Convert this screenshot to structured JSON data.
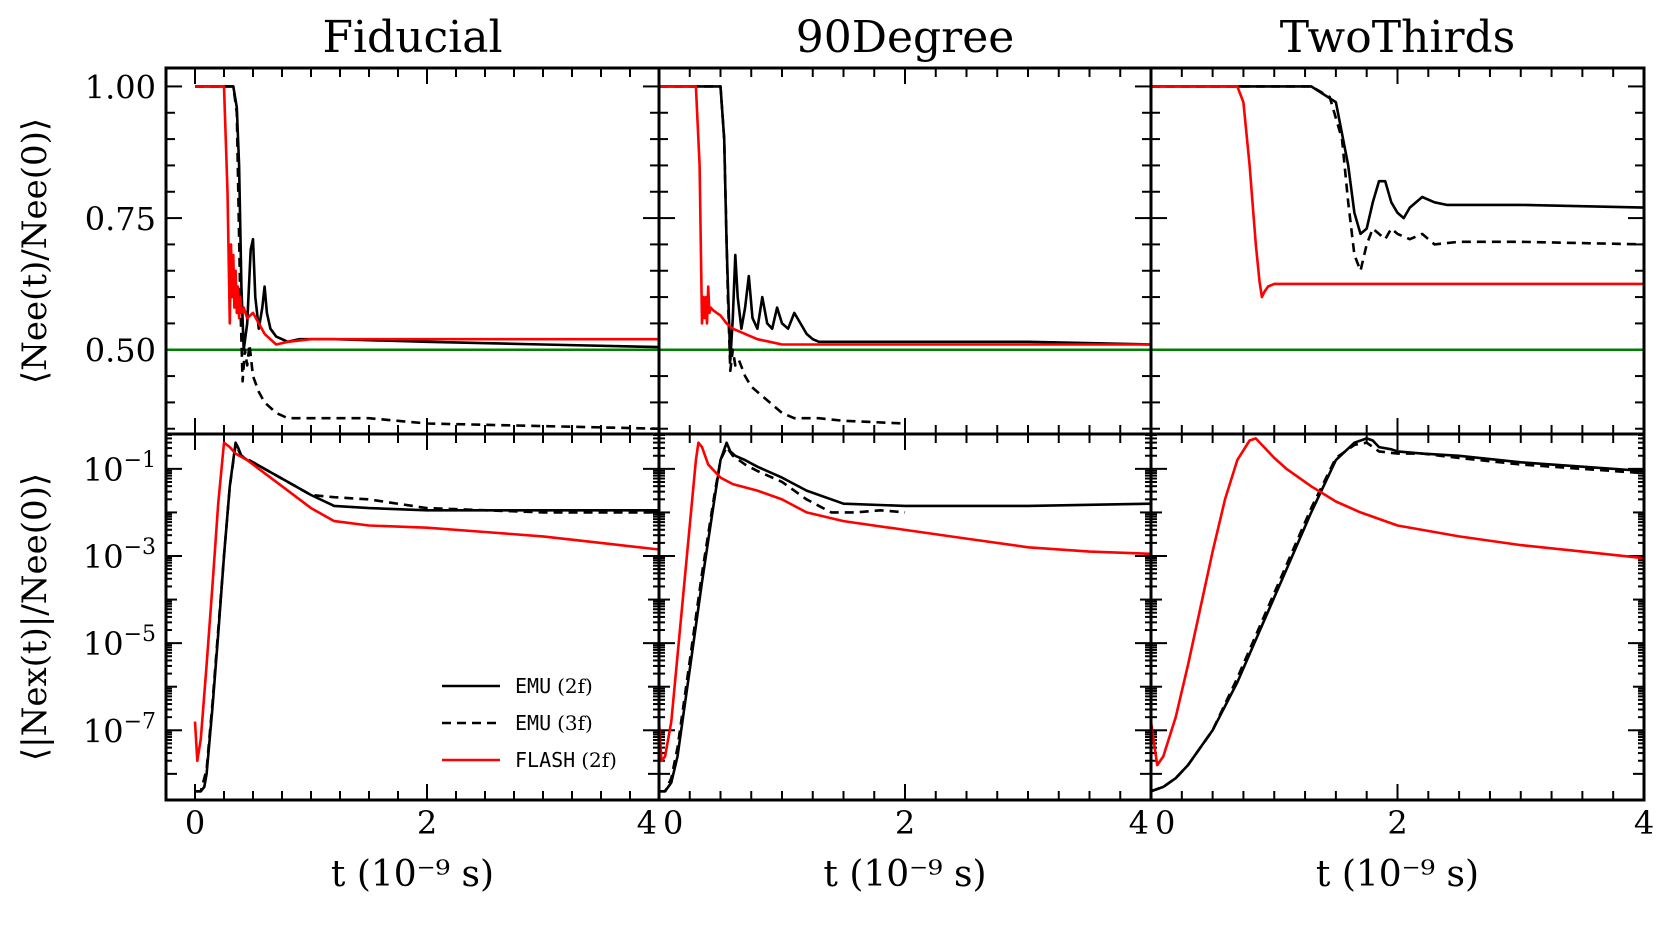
{
  "figure": {
    "legend": {
      "placement": "lower-right of bottom-left panel",
      "entries": [
        {
          "code": "EMU",
          "tag": "(2f)",
          "style": "solid",
          "color": "#000000"
        },
        {
          "code": "EMU",
          "tag": "(3f)",
          "style": "dashed",
          "color": "#000000"
        },
        {
          "code": "FLASH",
          "tag": "(2f)",
          "style": "solid",
          "color": "#ff0000"
        }
      ]
    }
  },
  "chart_data": [
    {
      "type": "line",
      "panel": "top-left",
      "title": "Fiducial",
      "ylabel": "⟨Nee(t)/Nee(0)⟩",
      "xlim": [
        -0.25,
        4.0
      ],
      "ylim": [
        0.34,
        1.035
      ],
      "yticks": [
        {
          "v": 0.5,
          "label": "0.50"
        },
        {
          "v": 0.75,
          "label": "0.75"
        },
        {
          "v": 1.0,
          "label": "1.00"
        }
      ],
      "hline": {
        "y": 0.5,
        "color": "#008000"
      },
      "series": [
        {
          "name": "EMU (2f)",
          "color": "#000000",
          "style": "solid",
          "x": [
            0,
            0.33,
            0.36,
            0.38,
            0.4,
            0.42,
            0.45,
            0.48,
            0.5,
            0.52,
            0.55,
            0.58,
            0.6,
            0.62,
            0.65,
            0.7,
            0.75,
            0.8,
            0.9,
            1.0,
            1.2,
            2.0,
            3.0,
            4.0
          ],
          "y": [
            1.0,
            1.0,
            0.96,
            0.85,
            0.62,
            0.5,
            0.55,
            0.69,
            0.71,
            0.6,
            0.54,
            0.58,
            0.62,
            0.57,
            0.54,
            0.525,
            0.52,
            0.515,
            0.52,
            0.52,
            0.52,
            0.515,
            0.51,
            0.505
          ]
        },
        {
          "name": "EMU (3f)",
          "color": "#000000",
          "style": "dashed",
          "x": [
            0,
            0.33,
            0.36,
            0.39,
            0.41,
            0.43,
            0.45,
            0.47,
            0.5,
            0.55,
            0.6,
            0.7,
            0.8,
            1.0,
            1.5,
            2.0,
            3.0,
            4.0
          ],
          "y": [
            1.0,
            1.0,
            0.95,
            0.6,
            0.44,
            0.5,
            0.47,
            0.51,
            0.45,
            0.42,
            0.4,
            0.38,
            0.37,
            0.37,
            0.37,
            0.36,
            0.355,
            0.35
          ]
        },
        {
          "name": "FLASH (2f)",
          "color": "#ff0000",
          "style": "solid",
          "x": [
            0,
            0.25,
            0.28,
            0.3,
            0.31,
            0.32,
            0.33,
            0.34,
            0.35,
            0.36,
            0.37,
            0.38,
            0.39,
            0.4,
            0.42,
            0.45,
            0.5,
            0.55,
            0.6,
            0.7,
            0.8,
            1.0,
            2.0,
            3.0,
            4.0
          ],
          "y": [
            1.0,
            1.0,
            0.8,
            0.55,
            0.7,
            0.6,
            0.68,
            0.58,
            0.65,
            0.57,
            0.62,
            0.56,
            0.6,
            0.57,
            0.58,
            0.56,
            0.57,
            0.55,
            0.53,
            0.51,
            0.515,
            0.52,
            0.52,
            0.52,
            0.52
          ]
        }
      ]
    },
    {
      "type": "line",
      "panel": "top-middle",
      "title": "90Degree",
      "xlim": [
        0.0,
        4.0
      ],
      "ylim": [
        0.34,
        1.035
      ],
      "hline": {
        "y": 0.5,
        "color": "#008000"
      },
      "series": [
        {
          "name": "EMU (2f)",
          "color": "#000000",
          "style": "solid",
          "x": [
            0,
            0.5,
            0.53,
            0.55,
            0.58,
            0.6,
            0.62,
            0.64,
            0.67,
            0.7,
            0.73,
            0.76,
            0.8,
            0.84,
            0.88,
            0.92,
            0.96,
            1.0,
            1.05,
            1.1,
            1.15,
            1.2,
            1.25,
            1.3,
            1.4,
            2.0,
            3.0,
            4.0
          ],
          "y": [
            1.0,
            1.0,
            0.9,
            0.7,
            0.48,
            0.56,
            0.68,
            0.6,
            0.54,
            0.58,
            0.64,
            0.56,
            0.54,
            0.6,
            0.55,
            0.54,
            0.58,
            0.55,
            0.54,
            0.57,
            0.55,
            0.53,
            0.52,
            0.515,
            0.515,
            0.515,
            0.515,
            0.51
          ]
        },
        {
          "name": "EMU (3f)",
          "color": "#000000",
          "style": "dashed",
          "x": [
            0,
            0.5,
            0.53,
            0.56,
            0.58,
            0.6,
            0.62,
            0.65,
            0.7,
            0.75,
            0.8,
            0.9,
            1.0,
            1.1,
            1.2,
            1.3,
            1.5,
            2.0
          ],
          "y": [
            1.0,
            1.0,
            0.9,
            0.6,
            0.46,
            0.5,
            0.47,
            0.48,
            0.45,
            0.43,
            0.42,
            0.4,
            0.38,
            0.37,
            0.37,
            0.37,
            0.365,
            0.36
          ]
        },
        {
          "name": "FLASH (2f)",
          "color": "#ff0000",
          "style": "solid",
          "x": [
            0,
            0.3,
            0.33,
            0.35,
            0.36,
            0.37,
            0.38,
            0.39,
            0.4,
            0.41,
            0.42,
            0.44,
            0.47,
            0.5,
            0.55,
            0.6,
            0.7,
            0.8,
            0.9,
            1.0,
            1.2,
            2.0,
            3.0,
            4.0
          ],
          "y": [
            1.0,
            1.0,
            0.85,
            0.55,
            0.6,
            0.56,
            0.6,
            0.55,
            0.62,
            0.57,
            0.58,
            0.575,
            0.57,
            0.565,
            0.55,
            0.54,
            0.53,
            0.52,
            0.515,
            0.51,
            0.51,
            0.51,
            0.51,
            0.51
          ]
        }
      ]
    },
    {
      "type": "line",
      "panel": "top-right",
      "title": "TwoThirds",
      "xlim": [
        0.0,
        4.0
      ],
      "ylim": [
        0.34,
        1.035
      ],
      "hline": {
        "y": 0.5,
        "color": "#008000"
      },
      "series": [
        {
          "name": "EMU (2f)",
          "color": "#000000",
          "style": "solid",
          "x": [
            0,
            1.3,
            1.5,
            1.6,
            1.65,
            1.7,
            1.75,
            1.8,
            1.85,
            1.9,
            1.95,
            2.0,
            2.05,
            2.1,
            2.2,
            2.3,
            2.4,
            2.6,
            3.0,
            4.0
          ],
          "y": [
            1.0,
            1.0,
            0.97,
            0.85,
            0.76,
            0.72,
            0.73,
            0.78,
            0.82,
            0.82,
            0.78,
            0.76,
            0.75,
            0.77,
            0.79,
            0.78,
            0.775,
            0.775,
            0.775,
            0.77
          ]
        },
        {
          "name": "EMU (3f)",
          "color": "#000000",
          "style": "dashed",
          "x": [
            0,
            1.3,
            1.45,
            1.55,
            1.6,
            1.65,
            1.7,
            1.75,
            1.8,
            1.85,
            1.9,
            1.95,
            2.0,
            2.1,
            2.2,
            2.3,
            2.5,
            3.0,
            4.0
          ],
          "y": [
            1.0,
            1.0,
            0.98,
            0.9,
            0.78,
            0.68,
            0.65,
            0.7,
            0.73,
            0.72,
            0.71,
            0.73,
            0.72,
            0.71,
            0.72,
            0.7,
            0.705,
            0.705,
            0.7
          ]
        },
        {
          "name": "FLASH (2f)",
          "color": "#ff0000",
          "style": "solid",
          "x": [
            0,
            0.7,
            0.75,
            0.8,
            0.85,
            0.88,
            0.9,
            0.92,
            0.95,
            1.0,
            1.2,
            2.0,
            3.0,
            4.0
          ],
          "y": [
            1.0,
            1.0,
            0.97,
            0.85,
            0.7,
            0.63,
            0.6,
            0.61,
            0.62,
            0.625,
            0.625,
            0.625,
            0.625,
            0.625
          ]
        }
      ]
    },
    {
      "type": "line",
      "panel": "bottom-left",
      "ylabel": "⟨|Nex(t)|/Nee(0)⟩",
      "xlabel": "t (10⁻⁹ s)",
      "yscale": "log",
      "xlim": [
        -0.25,
        4.0
      ],
      "ylim_log10": [
        -8.6,
        -0.2
      ],
      "xticks": [
        {
          "v": 0,
          "label": "0"
        },
        {
          "v": 2,
          "label": "2"
        },
        {
          "v": 4,
          "label": "4"
        }
      ],
      "yticks": [
        {
          "v": -7,
          "label": "10",
          "exp": "−7"
        },
        {
          "v": -5,
          "label": "10",
          "exp": "−5"
        },
        {
          "v": -3,
          "label": "10",
          "exp": "−3"
        },
        {
          "v": -1,
          "label": "10",
          "exp": "−1"
        }
      ],
      "series": [
        {
          "name": "EMU (2f)",
          "color": "#000000",
          "style": "solid",
          "x": [
            0,
            0.05,
            0.08,
            0.1,
            0.15,
            0.2,
            0.25,
            0.3,
            0.35,
            0.37,
            0.4,
            0.45,
            0.5,
            0.6,
            0.8,
            1.0,
            1.2,
            1.5,
            2.0,
            3.0,
            4.0
          ],
          "y": [
            -8.4,
            -8.4,
            -8.3,
            -8.0,
            -6.5,
            -4.8,
            -3.0,
            -1.4,
            -0.4,
            -0.5,
            -0.7,
            -0.8,
            -0.85,
            -1.0,
            -1.3,
            -1.6,
            -1.85,
            -1.9,
            -1.95,
            -1.95,
            -1.95
          ]
        },
        {
          "name": "EMU (3f)",
          "color": "#000000",
          "style": "dashed",
          "x": [
            0,
            0.05,
            0.1,
            0.15,
            0.2,
            0.25,
            0.3,
            0.35,
            0.37,
            0.4,
            0.5,
            0.6,
            0.8,
            1.0,
            1.2,
            1.5,
            2.0,
            3.0,
            4.0
          ],
          "y": [
            -8.4,
            -8.4,
            -7.9,
            -6.4,
            -4.7,
            -3.0,
            -1.4,
            -0.45,
            -0.55,
            -0.7,
            -0.85,
            -1.0,
            -1.3,
            -1.6,
            -1.65,
            -1.7,
            -1.9,
            -2.0,
            -2.0
          ]
        },
        {
          "name": "FLASH (2f)",
          "color": "#ff0000",
          "style": "solid",
          "x": [
            0,
            0.02,
            0.05,
            0.1,
            0.15,
            0.2,
            0.25,
            0.3,
            0.35,
            0.45,
            0.6,
            0.8,
            1.0,
            1.2,
            1.5,
            2.0,
            2.5,
            3.0,
            3.5,
            4.0
          ],
          "y": [
            -6.8,
            -7.7,
            -7.2,
            -5.5,
            -3.7,
            -1.8,
            -0.4,
            -0.5,
            -0.65,
            -0.8,
            -1.1,
            -1.5,
            -1.9,
            -2.2,
            -2.3,
            -2.35,
            -2.45,
            -2.55,
            -2.7,
            -2.85
          ]
        }
      ]
    },
    {
      "type": "line",
      "panel": "bottom-middle",
      "xlabel": "t (10⁻⁹ s)",
      "yscale": "log",
      "xlim": [
        0.0,
        4.0
      ],
      "ylim_log10": [
        -8.6,
        -0.2
      ],
      "xticks": [
        {
          "v": 0,
          "label": "0"
        },
        {
          "v": 2,
          "label": "2"
        },
        {
          "v": 4,
          "label": "4"
        }
      ],
      "series": [
        {
          "name": "EMU (2f)",
          "color": "#000000",
          "style": "solid",
          "x": [
            0,
            0.05,
            0.1,
            0.15,
            0.25,
            0.35,
            0.45,
            0.5,
            0.55,
            0.58,
            0.62,
            0.7,
            0.8,
            1.0,
            1.2,
            1.5,
            2.0,
            3.0,
            4.0
          ],
          "y": [
            -8.4,
            -8.4,
            -8.2,
            -7.6,
            -5.6,
            -3.6,
            -1.7,
            -0.8,
            -0.4,
            -0.6,
            -0.7,
            -0.8,
            -0.95,
            -1.2,
            -1.5,
            -1.8,
            -1.85,
            -1.85,
            -1.8
          ]
        },
        {
          "name": "EMU (3f)",
          "color": "#000000",
          "style": "dashed",
          "x": [
            0,
            0.05,
            0.1,
            0.15,
            0.25,
            0.35,
            0.45,
            0.5,
            0.55,
            0.6,
            0.7,
            0.8,
            1.0,
            1.2,
            1.4,
            1.6,
            1.8,
            2.0
          ],
          "y": [
            -8.4,
            -8.4,
            -8.1,
            -7.4,
            -5.4,
            -3.4,
            -1.6,
            -0.8,
            -0.5,
            -0.7,
            -0.9,
            -1.05,
            -1.3,
            -1.7,
            -2.0,
            -2.0,
            -1.95,
            -2.0
          ]
        },
        {
          "name": "FLASH (2f)",
          "color": "#ff0000",
          "style": "solid",
          "x": [
            0,
            0.02,
            0.05,
            0.1,
            0.2,
            0.3,
            0.32,
            0.35,
            0.4,
            0.5,
            0.6,
            0.8,
            1.0,
            1.2,
            1.5,
            2.0,
            2.5,
            3.0,
            3.5,
            4.0
          ],
          "y": [
            -6.8,
            -7.7,
            -7.6,
            -6.8,
            -3.8,
            -0.8,
            -0.4,
            -0.5,
            -0.9,
            -1.2,
            -1.35,
            -1.5,
            -1.7,
            -2.0,
            -2.2,
            -2.4,
            -2.6,
            -2.8,
            -2.9,
            -2.95
          ]
        }
      ]
    },
    {
      "type": "line",
      "panel": "bottom-right",
      "xlabel": "t (10⁻⁹ s)",
      "yscale": "log",
      "xlim": [
        0.0,
        4.0
      ],
      "ylim_log10": [
        -8.6,
        -0.2
      ],
      "xticks": [
        {
          "v": 0,
          "label": "0"
        },
        {
          "v": 2,
          "label": "2"
        },
        {
          "v": 4,
          "label": "4"
        }
      ],
      "series": [
        {
          "name": "EMU (2f)",
          "color": "#000000",
          "style": "solid",
          "x": [
            0,
            0.1,
            0.2,
            0.3,
            0.5,
            0.7,
            0.9,
            1.1,
            1.3,
            1.5,
            1.65,
            1.75,
            1.8,
            1.85,
            1.95,
            2.0,
            2.2,
            2.5,
            3.0,
            3.5,
            4.0
          ],
          "y": [
            -8.4,
            -8.3,
            -8.1,
            -7.8,
            -7.0,
            -5.9,
            -4.6,
            -3.3,
            -2.0,
            -0.8,
            -0.4,
            -0.3,
            -0.35,
            -0.5,
            -0.55,
            -0.6,
            -0.65,
            -0.7,
            -0.85,
            -0.95,
            -1.05
          ]
        },
        {
          "name": "EMU (3f)",
          "color": "#000000",
          "style": "dashed",
          "x": [
            0,
            0.1,
            0.2,
            0.3,
            0.5,
            0.7,
            0.9,
            1.1,
            1.3,
            1.5,
            1.65,
            1.75,
            1.85,
            2.0,
            2.2,
            2.5,
            3.0,
            3.5,
            4.0
          ],
          "y": [
            -8.4,
            -8.3,
            -8.1,
            -7.8,
            -7.0,
            -5.8,
            -4.5,
            -3.2,
            -1.9,
            -0.75,
            -0.45,
            -0.4,
            -0.6,
            -0.65,
            -0.65,
            -0.75,
            -0.9,
            -1.0,
            -1.1
          ]
        },
        {
          "name": "FLASH (2f)",
          "color": "#ff0000",
          "style": "solid",
          "x": [
            0.0,
            0.05,
            0.1,
            0.2,
            0.3,
            0.4,
            0.5,
            0.6,
            0.7,
            0.8,
            0.85,
            0.9,
            0.95,
            1.0,
            1.1,
            1.3,
            1.5,
            1.7,
            2.0,
            2.5,
            3.0,
            3.5,
            4.0
          ],
          "y": [
            -6.8,
            -7.8,
            -7.6,
            -6.7,
            -5.5,
            -4.2,
            -2.9,
            -1.7,
            -0.8,
            -0.35,
            -0.3,
            -0.45,
            -0.6,
            -0.75,
            -1.0,
            -1.4,
            -1.75,
            -2.0,
            -2.3,
            -2.55,
            -2.75,
            -2.9,
            -3.05
          ]
        }
      ]
    }
  ]
}
